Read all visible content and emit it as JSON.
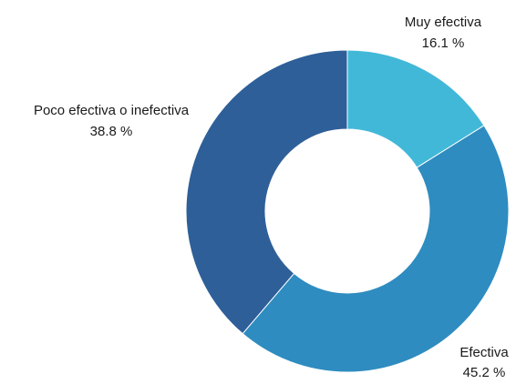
{
  "chart_data": {
    "type": "pie",
    "donut": true,
    "legend": "none",
    "slices": [
      {
        "label": "Muy efectiva",
        "value": 16.1,
        "value_label": "16.1 %",
        "color": "#42b8d8"
      },
      {
        "label": "Efectiva",
        "value": 45.2,
        "value_label": "45.2 %",
        "color": "#2e8cc0"
      },
      {
        "label": "Poco efectiva o inefectiva",
        "value": 38.8,
        "value_label": "38.8 %",
        "color": "#2e5f98"
      }
    ]
  }
}
